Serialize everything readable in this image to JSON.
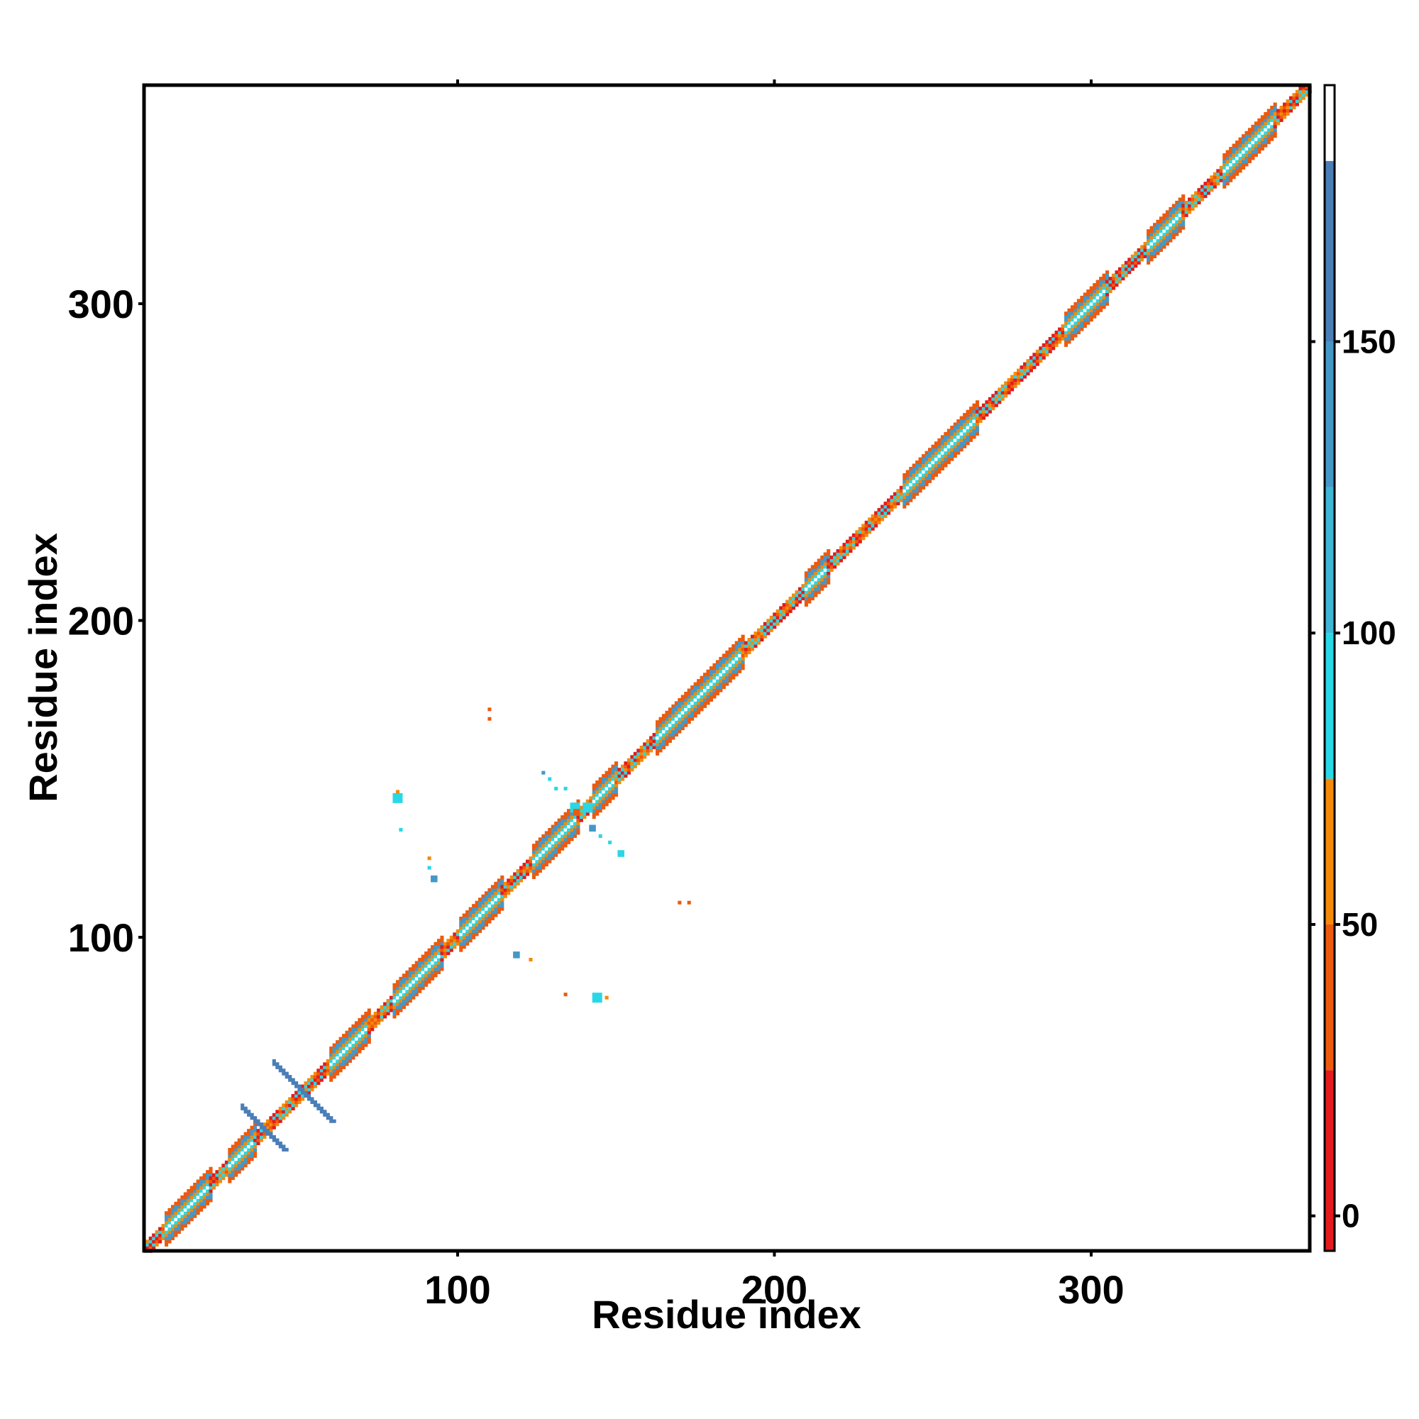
{
  "chart_data": {
    "type": "heatmap",
    "title": "",
    "xlabel": "Residue index",
    "ylabel": "Residue index",
    "xlim": [
      1,
      369
    ],
    "ylim": [
      1,
      369
    ],
    "x_ticks": [
      100,
      200,
      300
    ],
    "y_ticks": [
      100,
      200,
      300
    ],
    "grid": false,
    "colorbar": {
      "ticks": [
        0,
        50,
        100,
        150
      ],
      "range": [
        -6,
        194
      ],
      "bands": [
        {
          "from": -6,
          "to": 25,
          "color": "#e41a1c"
        },
        {
          "from": 25,
          "to": 50,
          "color": "#ec5a0e"
        },
        {
          "from": 50,
          "to": 75,
          "color": "#f58a0a"
        },
        {
          "from": 75,
          "to": 100,
          "color": "#29d8e6"
        },
        {
          "from": 100,
          "to": 125,
          "color": "#3fb6d6"
        },
        {
          "from": 125,
          "to": 150,
          "color": "#4498c8"
        },
        {
          "from": 150,
          "to": 181,
          "color": "#4a7eb8"
        },
        {
          "from": 181,
          "to": 194,
          "color": "#ffffff"
        }
      ]
    },
    "diagonal_segments": [
      {
        "from": 1,
        "to": 8,
        "kind": "loop"
      },
      {
        "from": 8,
        "to": 22,
        "kind": "helix"
      },
      {
        "from": 22,
        "to": 28,
        "kind": "loop"
      },
      {
        "from": 28,
        "to": 36,
        "kind": "helix"
      },
      {
        "from": 36,
        "to": 48,
        "kind": "loop"
      },
      {
        "from": 48,
        "to": 60,
        "kind": "loop"
      },
      {
        "from": 60,
        "to": 72,
        "kind": "helix"
      },
      {
        "from": 72,
        "to": 80,
        "kind": "loop"
      },
      {
        "from": 80,
        "to": 95,
        "kind": "helix"
      },
      {
        "from": 95,
        "to": 101,
        "kind": "loop"
      },
      {
        "from": 101,
        "to": 114,
        "kind": "helix"
      },
      {
        "from": 114,
        "to": 124,
        "kind": "loop"
      },
      {
        "from": 124,
        "to": 138,
        "kind": "helix"
      },
      {
        "from": 138,
        "to": 143,
        "kind": "loop"
      },
      {
        "from": 143,
        "to": 150,
        "kind": "helix"
      },
      {
        "from": 150,
        "to": 163,
        "kind": "loop"
      },
      {
        "from": 163,
        "to": 180,
        "kind": "helix"
      },
      {
        "from": 180,
        "to": 190,
        "kind": "helix"
      },
      {
        "from": 190,
        "to": 210,
        "kind": "loop"
      },
      {
        "from": 210,
        "to": 217,
        "kind": "helix"
      },
      {
        "from": 217,
        "to": 241,
        "kind": "loop"
      },
      {
        "from": 241,
        "to": 264,
        "kind": "helix"
      },
      {
        "from": 264,
        "to": 292,
        "kind": "loop"
      },
      {
        "from": 292,
        "to": 305,
        "kind": "helix"
      },
      {
        "from": 305,
        "to": 318,
        "kind": "loop"
      },
      {
        "from": 318,
        "to": 329,
        "kind": "helix"
      },
      {
        "from": 329,
        "to": 342,
        "kind": "loop"
      },
      {
        "from": 342,
        "to": 358,
        "kind": "helix"
      },
      {
        "from": 358,
        "to": 369,
        "kind": "loop"
      }
    ],
    "off_diagonal_contacts": [
      {
        "x": 80,
        "y": 143,
        "value": 95,
        "size": 3
      },
      {
        "x": 81,
        "y": 146,
        "value": 60,
        "size": 1
      },
      {
        "x": 82,
        "y": 134,
        "value": 95,
        "size": 1
      },
      {
        "x": 92,
        "y": 118,
        "value": 125,
        "size": 2
      },
      {
        "x": 91,
        "y": 125,
        "value": 60,
        "size": 1
      },
      {
        "x": 91,
        "y": 122,
        "value": 95,
        "size": 1
      },
      {
        "x": 110,
        "y": 172,
        "value": 45,
        "size": 1
      },
      {
        "x": 110,
        "y": 169,
        "value": 45,
        "size": 1
      },
      {
        "x": 118,
        "y": 94,
        "value": 125,
        "size": 2
      },
      {
        "x": 123,
        "y": 93,
        "value": 60,
        "size": 1
      },
      {
        "x": 127,
        "y": 152,
        "value": 125,
        "size": 1
      },
      {
        "x": 129,
        "y": 150,
        "value": 95,
        "size": 1
      },
      {
        "x": 131,
        "y": 147,
        "value": 95,
        "size": 1
      },
      {
        "x": 134,
        "y": 147,
        "value": 95,
        "size": 1
      },
      {
        "x": 136,
        "y": 140,
        "value": 95,
        "size": 3
      },
      {
        "x": 140,
        "y": 140,
        "value": 95,
        "size": 3
      },
      {
        "x": 142,
        "y": 134,
        "value": 125,
        "size": 2
      },
      {
        "x": 137,
        "y": 139,
        "value": 25,
        "size": 2
      },
      {
        "x": 145,
        "y": 132,
        "value": 95,
        "size": 1
      },
      {
        "x": 148,
        "y": 130,
        "value": 95,
        "size": 1
      },
      {
        "x": 151,
        "y": 126,
        "value": 95,
        "size": 2
      },
      {
        "x": 134,
        "y": 82,
        "value": 45,
        "size": 1
      },
      {
        "x": 143,
        "y": 80,
        "value": 95,
        "size": 3
      },
      {
        "x": 147,
        "y": 81,
        "value": 60,
        "size": 1
      },
      {
        "x": 170,
        "y": 111,
        "value": 45,
        "size": 1
      },
      {
        "x": 173,
        "y": 111,
        "value": 45,
        "size": 1
      }
    ],
    "cross_features": [
      {
        "cx": 51,
        "cy": 51,
        "lo": 42,
        "hi": 60,
        "value": 150
      },
      {
        "cx": 39,
        "cy": 39,
        "lo": 32,
        "hi": 45,
        "value": 150
      }
    ]
  }
}
